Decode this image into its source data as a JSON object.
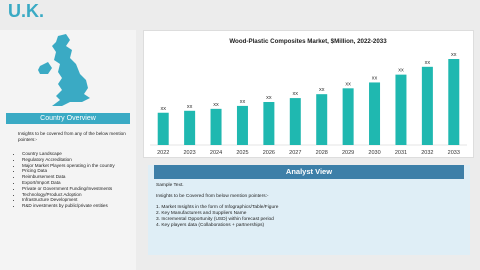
{
  "header": {
    "title": "U.K."
  },
  "country_overview": {
    "title": "Country Overview",
    "intro": "Insights to be covered from any of the below mention pointers:-",
    "items": [
      "Country Landscape",
      "Regulatory Accreditation",
      "Major Market Players operating in the country",
      "Pricing Data",
      "Reimbursement Data",
      "Export/Import Data",
      "Private or Government Funding/Investments",
      "Technology/Product Adoption",
      "Infrastructure Development",
      "R&D investments by public/private entities"
    ]
  },
  "chart_data": {
    "type": "bar",
    "title": "Wood-Plastic Composites Market, $Million, 2022-2033",
    "categories": [
      "2022",
      "2023",
      "2024",
      "2025",
      "2026",
      "2027",
      "2028",
      "2029",
      "2030",
      "2031",
      "2032",
      "2033"
    ],
    "values": [
      33,
      35,
      37,
      40,
      44,
      48,
      52,
      58,
      64,
      72,
      80,
      88
    ],
    "value_labels": [
      "xx",
      "xx",
      "xx",
      "xx",
      "xx",
      "xx",
      "xx",
      "xx",
      "xx",
      "xx",
      "xx",
      "xx"
    ],
    "color": "#1fb8b0"
  },
  "analyst_view": {
    "title": "Analyst View",
    "sample": "Sample Text.",
    "intro": "Insights to be Covered from below mention pointers:-",
    "items": [
      "1. Market Insights in the form of Infographics/Table/Figure",
      "2. Key Manufacturers and Suppliers Name",
      "3. Incremental Opportunity (USD) within forecast period",
      "4. Key players data (Collaborations + partnerships)"
    ]
  }
}
